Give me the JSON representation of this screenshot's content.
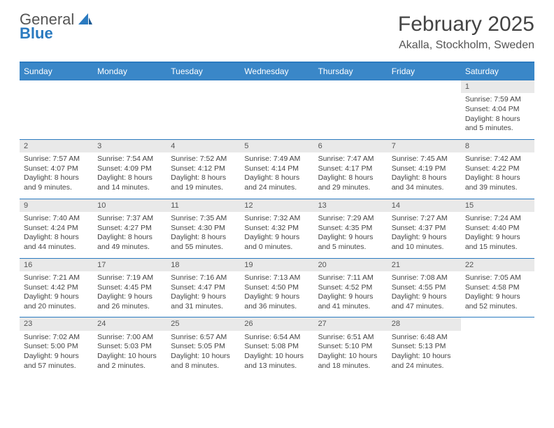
{
  "logo": {
    "line1": "General",
    "line2": "Blue"
  },
  "title": "February 2025",
  "location": "Akalla, Stockholm, Sweden",
  "colors": {
    "header_bar": "#3a87c8",
    "rule": "#2a7ac0",
    "daynum_bg": "#e9e9e9",
    "text": "#444444",
    "background": "#ffffff"
  },
  "day_headers": [
    "Sunday",
    "Monday",
    "Tuesday",
    "Wednesday",
    "Thursday",
    "Friday",
    "Saturday"
  ],
  "weeks": [
    [
      {
        "empty": true
      },
      {
        "empty": true
      },
      {
        "empty": true
      },
      {
        "empty": true
      },
      {
        "empty": true
      },
      {
        "empty": true
      },
      {
        "n": "1",
        "sunrise": "Sunrise: 7:59 AM",
        "sunset": "Sunset: 4:04 PM",
        "d1": "Daylight: 8 hours",
        "d2": "and 5 minutes."
      }
    ],
    [
      {
        "n": "2",
        "sunrise": "Sunrise: 7:57 AM",
        "sunset": "Sunset: 4:07 PM",
        "d1": "Daylight: 8 hours",
        "d2": "and 9 minutes."
      },
      {
        "n": "3",
        "sunrise": "Sunrise: 7:54 AM",
        "sunset": "Sunset: 4:09 PM",
        "d1": "Daylight: 8 hours",
        "d2": "and 14 minutes."
      },
      {
        "n": "4",
        "sunrise": "Sunrise: 7:52 AM",
        "sunset": "Sunset: 4:12 PM",
        "d1": "Daylight: 8 hours",
        "d2": "and 19 minutes."
      },
      {
        "n": "5",
        "sunrise": "Sunrise: 7:49 AM",
        "sunset": "Sunset: 4:14 PM",
        "d1": "Daylight: 8 hours",
        "d2": "and 24 minutes."
      },
      {
        "n": "6",
        "sunrise": "Sunrise: 7:47 AM",
        "sunset": "Sunset: 4:17 PM",
        "d1": "Daylight: 8 hours",
        "d2": "and 29 minutes."
      },
      {
        "n": "7",
        "sunrise": "Sunrise: 7:45 AM",
        "sunset": "Sunset: 4:19 PM",
        "d1": "Daylight: 8 hours",
        "d2": "and 34 minutes."
      },
      {
        "n": "8",
        "sunrise": "Sunrise: 7:42 AM",
        "sunset": "Sunset: 4:22 PM",
        "d1": "Daylight: 8 hours",
        "d2": "and 39 minutes."
      }
    ],
    [
      {
        "n": "9",
        "sunrise": "Sunrise: 7:40 AM",
        "sunset": "Sunset: 4:24 PM",
        "d1": "Daylight: 8 hours",
        "d2": "and 44 minutes."
      },
      {
        "n": "10",
        "sunrise": "Sunrise: 7:37 AM",
        "sunset": "Sunset: 4:27 PM",
        "d1": "Daylight: 8 hours",
        "d2": "and 49 minutes."
      },
      {
        "n": "11",
        "sunrise": "Sunrise: 7:35 AM",
        "sunset": "Sunset: 4:30 PM",
        "d1": "Daylight: 8 hours",
        "d2": "and 55 minutes."
      },
      {
        "n": "12",
        "sunrise": "Sunrise: 7:32 AM",
        "sunset": "Sunset: 4:32 PM",
        "d1": "Daylight: 9 hours",
        "d2": "and 0 minutes."
      },
      {
        "n": "13",
        "sunrise": "Sunrise: 7:29 AM",
        "sunset": "Sunset: 4:35 PM",
        "d1": "Daylight: 9 hours",
        "d2": "and 5 minutes."
      },
      {
        "n": "14",
        "sunrise": "Sunrise: 7:27 AM",
        "sunset": "Sunset: 4:37 PM",
        "d1": "Daylight: 9 hours",
        "d2": "and 10 minutes."
      },
      {
        "n": "15",
        "sunrise": "Sunrise: 7:24 AM",
        "sunset": "Sunset: 4:40 PM",
        "d1": "Daylight: 9 hours",
        "d2": "and 15 minutes."
      }
    ],
    [
      {
        "n": "16",
        "sunrise": "Sunrise: 7:21 AM",
        "sunset": "Sunset: 4:42 PM",
        "d1": "Daylight: 9 hours",
        "d2": "and 20 minutes."
      },
      {
        "n": "17",
        "sunrise": "Sunrise: 7:19 AM",
        "sunset": "Sunset: 4:45 PM",
        "d1": "Daylight: 9 hours",
        "d2": "and 26 minutes."
      },
      {
        "n": "18",
        "sunrise": "Sunrise: 7:16 AM",
        "sunset": "Sunset: 4:47 PM",
        "d1": "Daylight: 9 hours",
        "d2": "and 31 minutes."
      },
      {
        "n": "19",
        "sunrise": "Sunrise: 7:13 AM",
        "sunset": "Sunset: 4:50 PM",
        "d1": "Daylight: 9 hours",
        "d2": "and 36 minutes."
      },
      {
        "n": "20",
        "sunrise": "Sunrise: 7:11 AM",
        "sunset": "Sunset: 4:52 PM",
        "d1": "Daylight: 9 hours",
        "d2": "and 41 minutes."
      },
      {
        "n": "21",
        "sunrise": "Sunrise: 7:08 AM",
        "sunset": "Sunset: 4:55 PM",
        "d1": "Daylight: 9 hours",
        "d2": "and 47 minutes."
      },
      {
        "n": "22",
        "sunrise": "Sunrise: 7:05 AM",
        "sunset": "Sunset: 4:58 PM",
        "d1": "Daylight: 9 hours",
        "d2": "and 52 minutes."
      }
    ],
    [
      {
        "n": "23",
        "sunrise": "Sunrise: 7:02 AM",
        "sunset": "Sunset: 5:00 PM",
        "d1": "Daylight: 9 hours",
        "d2": "and 57 minutes."
      },
      {
        "n": "24",
        "sunrise": "Sunrise: 7:00 AM",
        "sunset": "Sunset: 5:03 PM",
        "d1": "Daylight: 10 hours",
        "d2": "and 2 minutes."
      },
      {
        "n": "25",
        "sunrise": "Sunrise: 6:57 AM",
        "sunset": "Sunset: 5:05 PM",
        "d1": "Daylight: 10 hours",
        "d2": "and 8 minutes."
      },
      {
        "n": "26",
        "sunrise": "Sunrise: 6:54 AM",
        "sunset": "Sunset: 5:08 PM",
        "d1": "Daylight: 10 hours",
        "d2": "and 13 minutes."
      },
      {
        "n": "27",
        "sunrise": "Sunrise: 6:51 AM",
        "sunset": "Sunset: 5:10 PM",
        "d1": "Daylight: 10 hours",
        "d2": "and 18 minutes."
      },
      {
        "n": "28",
        "sunrise": "Sunrise: 6:48 AM",
        "sunset": "Sunset: 5:13 PM",
        "d1": "Daylight: 10 hours",
        "d2": "and 24 minutes."
      },
      {
        "empty": true
      }
    ]
  ]
}
